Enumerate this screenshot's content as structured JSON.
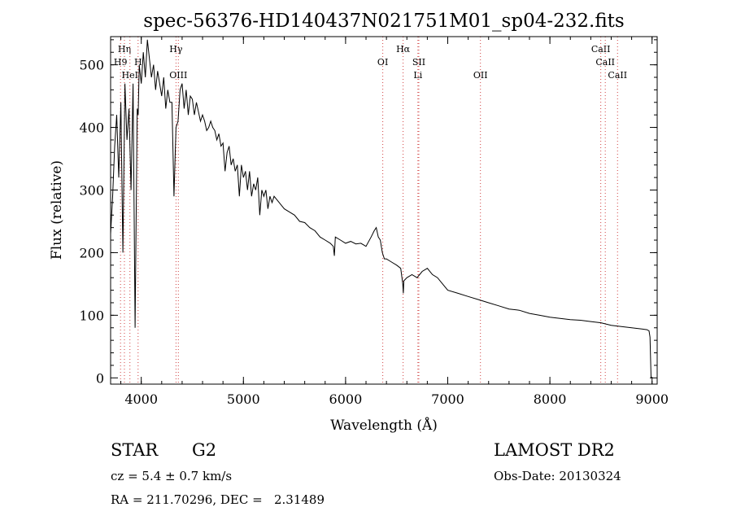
{
  "chart_data": {
    "type": "line",
    "title": "spec-56376-HD140437N021751M01_sp04-232.fits",
    "xlabel": "Wavelength (Å)",
    "ylabel": "Flux (relative)",
    "xlim": [
      3700,
      9050
    ],
    "ylim": [
      -10,
      545
    ],
    "xticks": [
      4000,
      5000,
      6000,
      7000,
      8000,
      9000
    ],
    "yticks": [
      0,
      100,
      200,
      300,
      400,
      500
    ],
    "grid": false,
    "series": [
      {
        "x": [
          3700,
          3720,
          3740,
          3760,
          3780,
          3800,
          3820,
          3840,
          3860,
          3880,
          3900,
          3920,
          3940,
          3960,
          3970,
          3980,
          4000,
          4020,
          4040,
          4060,
          4080,
          4100,
          4120,
          4140,
          4160,
          4180,
          4200,
          4220,
          4240,
          4260,
          4280,
          4300,
          4320,
          4340,
          4360,
          4380,
          4400,
          4420,
          4440,
          4460,
          4480,
          4500,
          4520,
          4540,
          4560,
          4580,
          4600,
          4620,
          4640,
          4660,
          4680,
          4700,
          4720,
          4740,
          4760,
          4780,
          4800,
          4820,
          4840,
          4860,
          4880,
          4900,
          4920,
          4940,
          4960,
          4980,
          5000,
          5020,
          5040,
          5060,
          5080,
          5100,
          5120,
          5140,
          5160,
          5180,
          5200,
          5220,
          5240,
          5260,
          5280,
          5300,
          5350,
          5400,
          5450,
          5500,
          5550,
          5600,
          5650,
          5700,
          5750,
          5800,
          5850,
          5880,
          5890,
          5900,
          5950,
          6000,
          6050,
          6100,
          6150,
          6200,
          6250,
          6280,
          6300,
          6320,
          6340,
          6360,
          6380,
          6400,
          6450,
          6500,
          6540,
          6560,
          6565,
          6570,
          6600,
          6650,
          6700,
          6750,
          6800,
          6850,
          6900,
          6950,
          7000,
          7100,
          7200,
          7300,
          7400,
          7500,
          7600,
          7700,
          7800,
          7900,
          8000,
          8100,
          8200,
          8300,
          8400,
          8500,
          8600,
          8700,
          8800,
          8900,
          8950,
          8970,
          8980,
          8990
        ],
        "y": [
          230,
          290,
          370,
          420,
          320,
          440,
          200,
          470,
          380,
          430,
          300,
          470,
          80,
          430,
          420,
          500,
          470,
          520,
          480,
          540,
          510,
          480,
          500,
          460,
          490,
          470,
          450,
          480,
          430,
          460,
          440,
          440,
          290,
          400,
          410,
          460,
          470,
          430,
          460,
          420,
          450,
          445,
          420,
          440,
          425,
          410,
          420,
          410,
          395,
          400,
          410,
          400,
          395,
          380,
          390,
          370,
          375,
          330,
          360,
          370,
          340,
          350,
          330,
          340,
          290,
          340,
          320,
          330,
          300,
          330,
          290,
          310,
          300,
          320,
          260,
          300,
          290,
          300,
          270,
          290,
          280,
          290,
          280,
          270,
          265,
          260,
          250,
          248,
          240,
          235,
          225,
          220,
          215,
          210,
          195,
          225,
          220,
          215,
          218,
          214,
          215,
          210,
          225,
          235,
          240,
          225,
          220,
          200,
          190,
          190,
          185,
          180,
          175,
          150,
          135,
          155,
          160,
          165,
          160,
          170,
          175,
          165,
          160,
          150,
          140,
          135,
          130,
          125,
          120,
          115,
          110,
          108,
          103,
          100,
          97,
          95,
          93,
          92,
          90,
          88,
          84,
          82,
          80,
          78,
          77,
          75,
          65,
          0
        ]
      }
    ],
    "lines": {
      "y_row_labels": [
        "Hη",
        "H9",
        "HeI",
        "H",
        "Hγ",
        "OIII",
        "OI",
        "Hα",
        "SII",
        "Li",
        "OII",
        "CaII",
        "CaII",
        "CaII"
      ],
      "wavelengths": [
        3835,
        3797,
        3889,
        3969,
        4340,
        4363,
        6364,
        6563,
        6717,
        6708,
        7320,
        8498,
        8542,
        8662
      ]
    }
  },
  "footer": {
    "object_type": "STAR",
    "subclass": "G2",
    "survey": "LAMOST DR2",
    "cz": "cz = 5.4 ± 0.7 km/s",
    "obs_date": "Obs-Date: 20130324",
    "coords": "RA = 211.70296, DEC =   2.31489"
  }
}
